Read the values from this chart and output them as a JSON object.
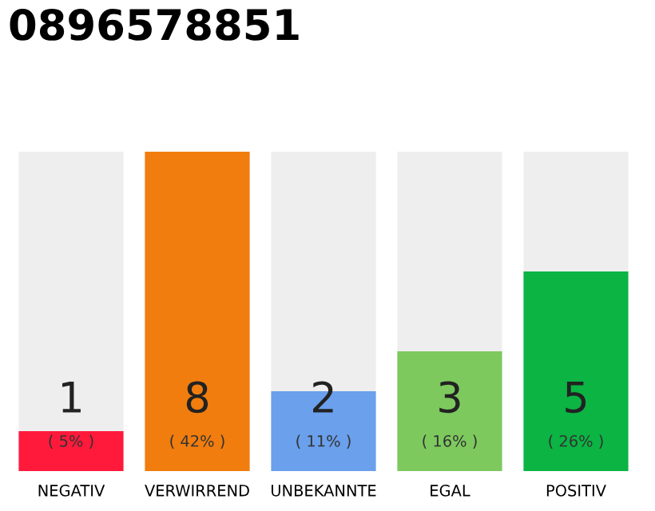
{
  "chart_data": {
    "type": "bar",
    "title": "0896578851",
    "categories": [
      "NEGATIV",
      "VERWIRREND",
      "UNBEKANNTE",
      "EGAL",
      "POSITIV"
    ],
    "values": [
      1,
      8,
      2,
      3,
      5
    ],
    "colors": [
      "#ff1a3c",
      "#f07d0e",
      "#6aa0ec",
      "#7dc95e",
      "#0bb443"
    ],
    "data_labels": true,
    "grid": false,
    "legend": false,
    "tick_labels": "x",
    "annotations": [
      "( 5% )",
      "( 42% )",
      "( 11% )",
      "( 16% )",
      "( 26% )"
    ]
  }
}
